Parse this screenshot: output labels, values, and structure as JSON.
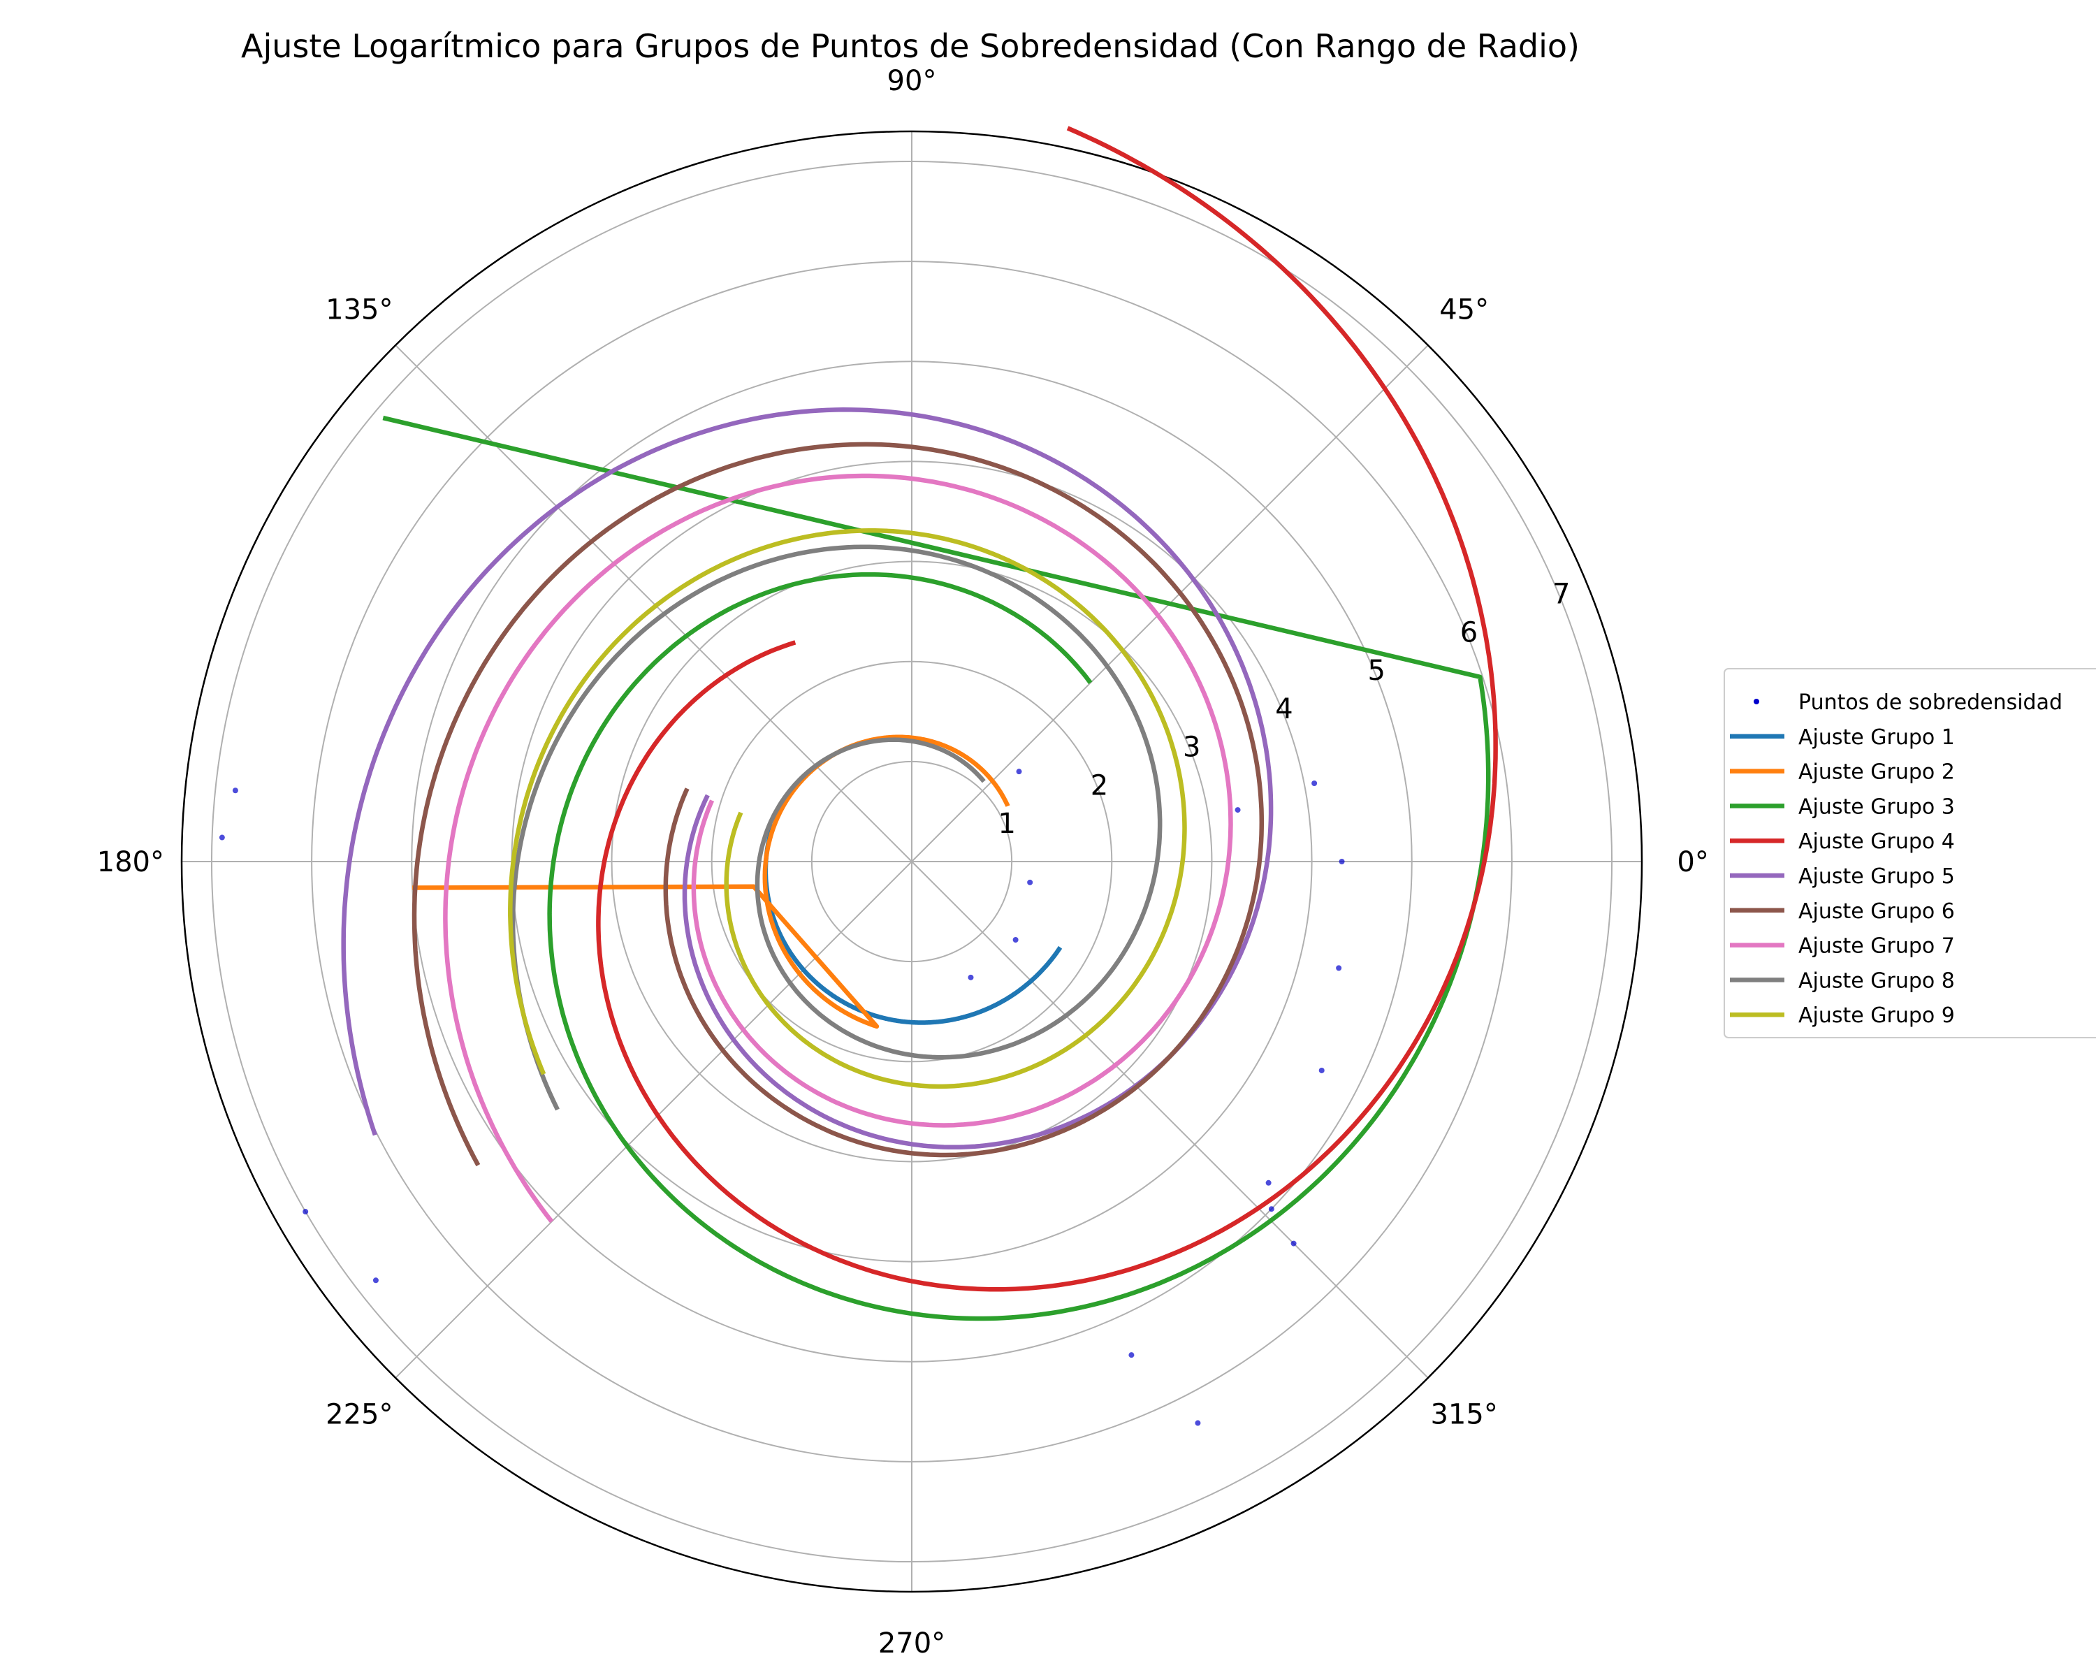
{
  "chart_data": {
    "type": "scatter",
    "projection": "polar",
    "title": "Ajuste Logarítmico para Grupos de Puntos de Sobredensidad (Con Rango de Radio)",
    "angle_tick_labels": [
      "0°",
      "45°",
      "90°",
      "135°",
      "180°",
      "225°",
      "270°",
      "315°"
    ],
    "radial_tick_labels": [
      "1",
      "2",
      "3",
      "4",
      "5",
      "6",
      "7"
    ],
    "radial_ticks": [
      1,
      2,
      3,
      4,
      5,
      6,
      7
    ],
    "rlim": [
      0,
      7.3
    ],
    "grid": true,
    "legend_position": "right",
    "scatter": {
      "name": "Puntos de sobredensidad",
      "color": "#0000cc",
      "points": [
        {
          "theta_deg": 40,
          "r": 1.4
        },
        {
          "theta_deg": 350,
          "r": 1.2
        },
        {
          "theta_deg": 323,
          "r": 1.3
        },
        {
          "theta_deg": 297,
          "r": 1.3
        },
        {
          "theta_deg": 9,
          "r": 3.3
        },
        {
          "theta_deg": 11,
          "r": 4.1
        },
        {
          "theta_deg": 0,
          "r": 4.3
        },
        {
          "theta_deg": 346,
          "r": 4.4
        },
        {
          "theta_deg": 333,
          "r": 4.6
        },
        {
          "theta_deg": 318,
          "r": 4.8
        },
        {
          "theta_deg": 316,
          "r": 5.0
        },
        {
          "theta_deg": 315,
          "r": 5.4
        },
        {
          "theta_deg": 297,
          "r": 6.3
        },
        {
          "theta_deg": 294,
          "r": 5.4
        },
        {
          "theta_deg": 178,
          "r": 6.9
        },
        {
          "theta_deg": 174,
          "r": 6.8
        },
        {
          "theta_deg": 218,
          "r": 6.8
        },
        {
          "theta_deg": 210,
          "r": 7.0
        }
      ]
    },
    "series": [
      {
        "name": "Ajuste Grupo 1",
        "color": "#1f77b4",
        "a": 1.2,
        "b": 0.062,
        "theta_start_deg": 165,
        "theta_end_deg": 330
      },
      {
        "name": "Ajuste Grupo 2",
        "color": "#ff7f0e",
        "a": 1.05,
        "b": 0.105,
        "theta_start_deg": 30,
        "theta_end_deg": 258,
        "tail": [
          {
            "theta_deg": 189,
            "r": 1.6
          },
          {
            "theta_deg": 183,
            "r": 5.0
          }
        ]
      },
      {
        "name": "Ajuste Grupo 3",
        "color": "#2ca02c",
        "a": 2.25,
        "b": 0.148,
        "theta_start_deg": 45,
        "theta_end_deg": 378,
        "tail": [
          {
            "theta_deg": 140,
            "r": 6.9
          }
        ]
      },
      {
        "name": "Ajuste Grupo 4",
        "color": "#d62728",
        "a": 1.65,
        "b": 0.198,
        "theta_start_deg": 118,
        "theta_end_deg": 438
      },
      {
        "name": "Ajuste Grupo 5",
        "color": "#9467bd",
        "a": 1.42,
        "b": 0.146,
        "theta_start_deg": 162,
        "theta_end_deg": 567
      },
      {
        "name": "Ajuste Grupo 6",
        "color": "#8c564b",
        "a": 1.72,
        "b": 0.112,
        "theta_start_deg": 162,
        "theta_end_deg": 575
      },
      {
        "name": "Ajuste Grupo 7",
        "color": "#e377c2",
        "a": 1.48,
        "b": 0.121,
        "theta_start_deg": 163,
        "theta_end_deg": 585
      },
      {
        "name": "Ajuste Grupo 8",
        "color": "#7f7f7f",
        "a": 0.95,
        "b": 0.151,
        "theta_start_deg": 48,
        "theta_end_deg": 575
      },
      {
        "name": "Ajuste Grupo 9",
        "color": "#bcbd22",
        "a": 1.25,
        "b": 0.123,
        "theta_start_deg": 164,
        "theta_end_deg": 570
      }
    ]
  }
}
